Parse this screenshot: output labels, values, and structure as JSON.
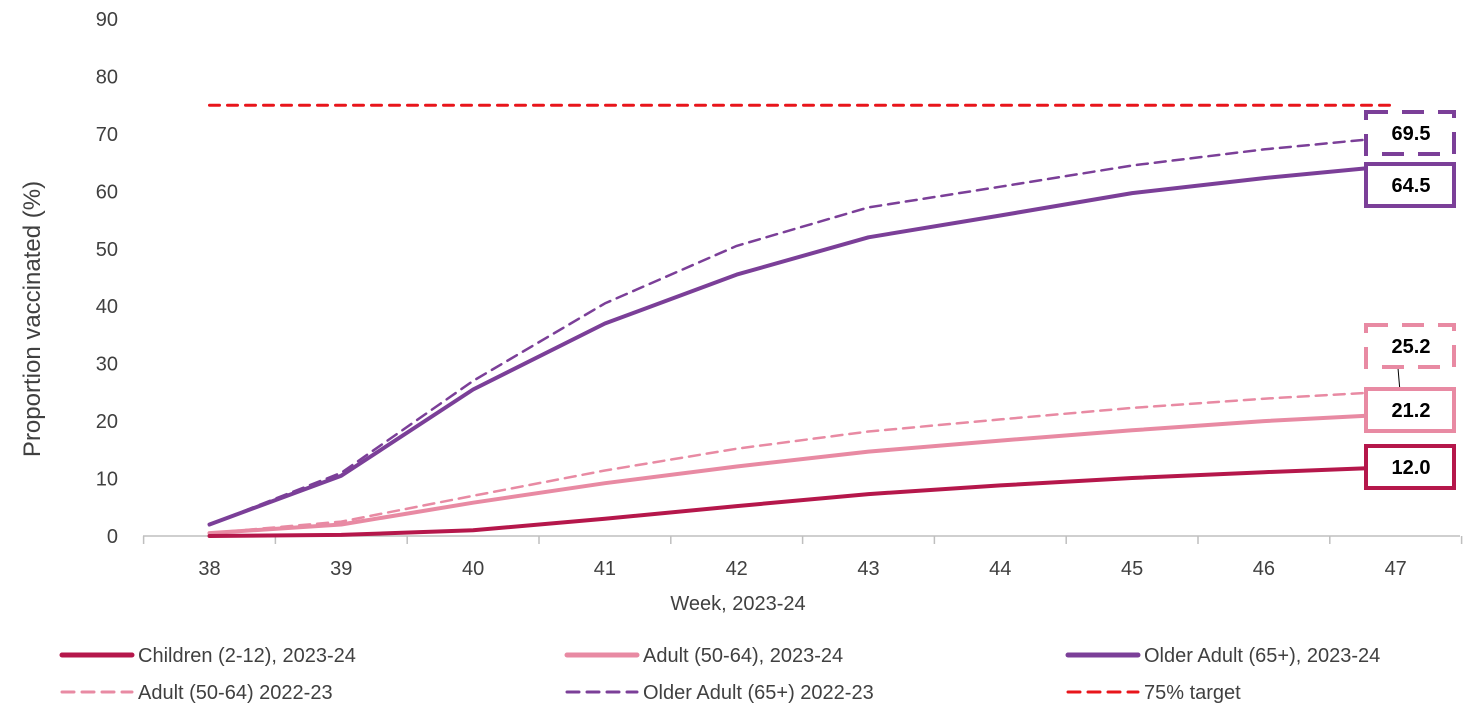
{
  "chart_data": {
    "type": "line",
    "title": "",
    "xlabel": "Week, 2023-24",
    "ylabel": "Proportion  vaccinated (%)",
    "x": [
      38,
      39,
      40,
      41,
      42,
      43,
      44,
      45,
      46,
      47
    ],
    "x_tick_labels": [
      "38",
      "39",
      "40",
      "41",
      "42",
      "43",
      "44",
      "45",
      "46",
      "47"
    ],
    "ylim": [
      0,
      90
    ],
    "y_ticks": [
      0,
      10,
      20,
      30,
      40,
      50,
      60,
      70,
      80,
      90
    ],
    "y_tick_labels": [
      "0",
      "10",
      "20",
      "30",
      "40",
      "50",
      "60",
      "70",
      "80",
      "90"
    ],
    "grid": false,
    "legend_position": "bottom",
    "series": [
      {
        "name": "Children (2-12), 2023-24",
        "color": "#b5174b",
        "dashed": false,
        "values": [
          0.0,
          0.2,
          1.0,
          3.0,
          5.2,
          7.3,
          8.8,
          10.1,
          11.1,
          12.0
        ],
        "end_label": "12.0"
      },
      {
        "name": "Adult (50-64), 2023-24",
        "color": "#e88aa3",
        "dashed": false,
        "values": [
          0.5,
          2.0,
          5.8,
          9.2,
          12.1,
          14.7,
          16.6,
          18.4,
          20.0,
          21.2
        ],
        "end_label": "21.2"
      },
      {
        "name": "Older Adult (65+), 2023-24",
        "color": "#7b3f98",
        "dashed": false,
        "values": [
          2.0,
          10.5,
          25.5,
          37.0,
          45.5,
          52.0,
          55.8,
          59.7,
          62.3,
          64.5
        ],
        "end_label": "64.5"
      },
      {
        "name": "Adult (50-64) 2022-23",
        "color": "#e88aa3",
        "dashed": true,
        "values": [
          0.5,
          2.5,
          7.0,
          11.4,
          15.2,
          18.2,
          20.3,
          22.3,
          23.9,
          25.2
        ],
        "end_label": "25.2"
      },
      {
        "name": "Older Adult (65+) 2022-23",
        "color": "#7b3f98",
        "dashed": true,
        "values": [
          2.0,
          11.0,
          27.0,
          40.5,
          50.5,
          57.2,
          60.8,
          64.5,
          67.3,
          69.5
        ],
        "end_label": "69.5"
      },
      {
        "name": "75% target",
        "color": "#e8151b",
        "dashed": true,
        "values": [
          75,
          75,
          75,
          75,
          75,
          75,
          75,
          75,
          75,
          75
        ]
      }
    ]
  }
}
